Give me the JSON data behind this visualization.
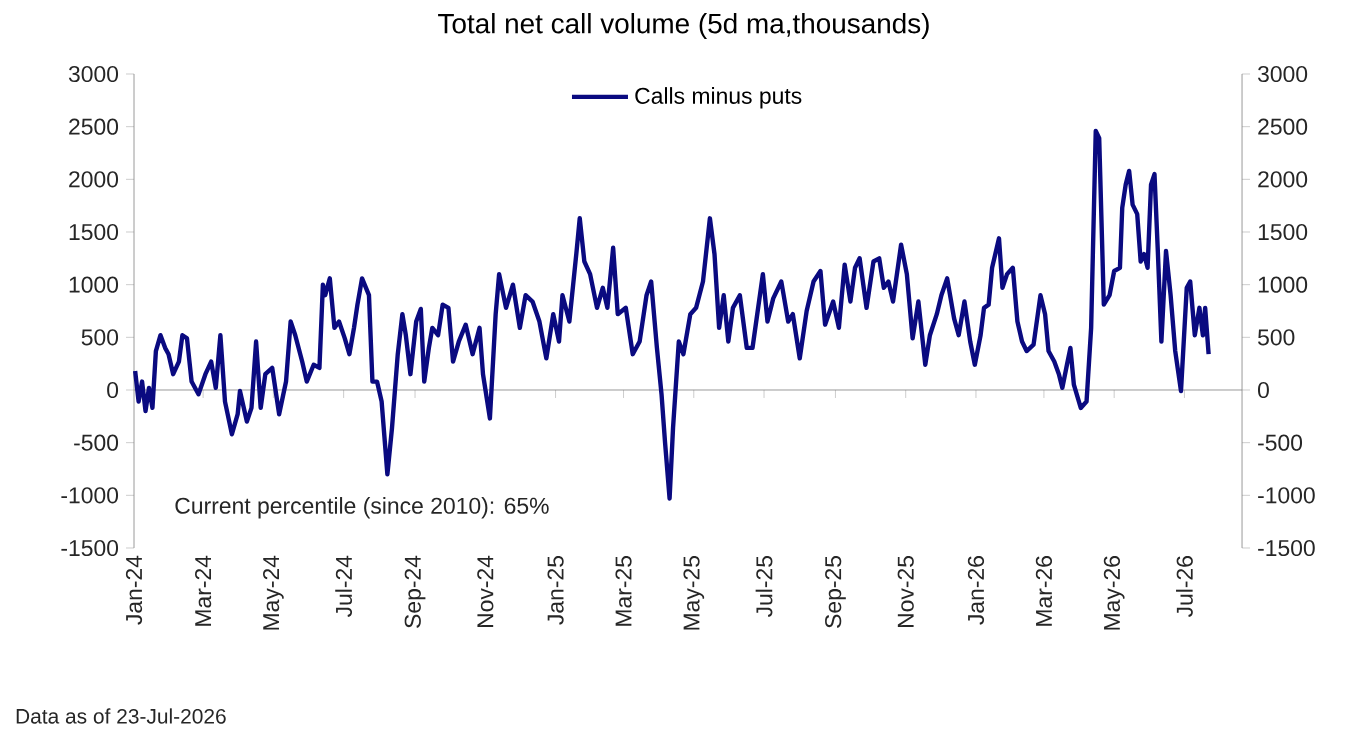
{
  "chart_data": {
    "type": "line",
    "title": "Total net call volume (5d ma,thousands)",
    "legend": "top",
    "xlim": [
      "2024-01-01",
      "2026-08-20"
    ],
    "xticks": [
      {
        "value": "2024-01-01",
        "label": "Jan-24"
      },
      {
        "value": "2024-03-01",
        "label": "Mar-24"
      },
      {
        "value": "2024-05-01",
        "label": "May-24"
      },
      {
        "value": "2024-07-01",
        "label": "Jul-24"
      },
      {
        "value": "2024-09-01",
        "label": "Sep-24"
      },
      {
        "value": "2024-11-01",
        "label": "Nov-24"
      },
      {
        "value": "2025-01-01",
        "label": "Jan-25"
      },
      {
        "value": "2025-03-01",
        "label": "Mar-25"
      },
      {
        "value": "2025-05-01",
        "label": "May-25"
      },
      {
        "value": "2025-07-01",
        "label": "Jul-25"
      },
      {
        "value": "2025-09-01",
        "label": "Sep-25"
      },
      {
        "value": "2025-11-01",
        "label": "Nov-25"
      },
      {
        "value": "2026-01-01",
        "label": "Jan-26"
      },
      {
        "value": "2026-03-01",
        "label": "Mar-26"
      },
      {
        "value": "2026-05-01",
        "label": "May-26"
      },
      {
        "value": "2026-07-01",
        "label": "Jul-26"
      }
    ],
    "ylim": [
      -1500,
      3000
    ],
    "yticks": [
      -1500,
      -1000,
      -500,
      0,
      500,
      1000,
      1500,
      2000,
      2500,
      3000
    ],
    "y2lim": [
      -1500,
      3000
    ],
    "y2ticks": [
      -1500,
      -1000,
      -500,
      0,
      500,
      1000,
      1500,
      2000,
      2500,
      3000
    ],
    "annotations": [
      "Current percentile (since 2010): 65%",
      "Data as of 23-Jul-2026"
    ],
    "series": [
      {
        "name": "Calls minus puts",
        "color": "#0a0a80",
        "x": [
          "2024-01-02",
          "2024-01-05",
          "2024-01-08",
          "2024-01-11",
          "2024-01-14",
          "2024-01-17",
          "2024-01-20",
          "2024-01-24",
          "2024-01-28",
          "2024-01-31",
          "2024-02-04",
          "2024-02-09",
          "2024-02-12",
          "2024-02-16",
          "2024-02-20",
          "2024-02-26",
          "2024-03-03",
          "2024-03-08",
          "2024-03-12",
          "2024-03-16",
          "2024-03-20",
          "2024-03-26",
          "2024-03-31",
          "2024-04-02",
          "2024-04-08",
          "2024-04-12",
          "2024-04-16",
          "2024-04-20",
          "2024-04-24",
          "2024-04-30",
          "2024-05-06",
          "2024-05-12",
          "2024-05-16",
          "2024-05-20",
          "2024-05-26",
          "2024-05-30",
          "2024-06-05",
          "2024-06-10",
          "2024-06-13",
          "2024-06-15",
          "2024-06-19",
          "2024-06-23",
          "2024-06-27",
          "2024-07-02",
          "2024-07-06",
          "2024-07-10",
          "2024-07-13",
          "2024-07-17",
          "2024-07-23",
          "2024-07-26",
          "2024-07-30",
          "2024-08-03",
          "2024-08-08",
          "2024-08-12",
          "2024-08-17",
          "2024-08-21",
          "2024-08-24",
          "2024-08-28",
          "2024-09-02",
          "2024-09-06",
          "2024-09-09",
          "2024-09-13",
          "2024-09-16",
          "2024-09-21",
          "2024-09-25",
          "2024-09-30",
          "2024-10-04",
          "2024-10-09",
          "2024-10-15",
          "2024-10-21",
          "2024-10-27",
          "2024-10-30",
          "2024-11-05",
          "2024-11-10",
          "2024-11-13",
          "2024-11-19",
          "2024-11-25",
          "2024-12-01",
          "2024-12-06",
          "2024-12-12",
          "2024-12-18",
          "2024-12-24",
          "2024-12-30",
          "2025-01-04",
          "2025-01-07",
          "2025-01-13",
          "2025-01-19",
          "2025-01-22",
          "2025-01-26",
          "2025-01-31",
          "2025-02-06",
          "2025-02-11",
          "2025-02-15",
          "2025-02-20",
          "2025-02-24",
          "2025-03-03",
          "2025-03-09",
          "2025-03-15",
          "2025-03-21",
          "2025-03-25",
          "2025-03-30",
          "2025-04-03",
          "2025-04-06",
          "2025-04-10",
          "2025-04-13",
          "2025-04-18",
          "2025-04-22",
          "2025-04-28",
          "2025-05-03",
          "2025-05-09",
          "2025-05-15",
          "2025-05-19",
          "2025-05-23",
          "2025-05-27",
          "2025-05-31",
          "2025-06-04",
          "2025-06-10",
          "2025-06-16",
          "2025-06-21",
          "2025-06-30",
          "2025-07-04",
          "2025-07-09",
          "2025-07-16",
          "2025-07-22",
          "2025-07-26",
          "2025-08-01",
          "2025-08-07",
          "2025-08-13",
          "2025-08-19",
          "2025-08-23",
          "2025-08-30",
          "2025-09-04",
          "2025-09-09",
          "2025-09-14",
          "2025-09-18",
          "2025-09-22",
          "2025-09-28",
          "2025-10-04",
          "2025-10-09",
          "2025-10-13",
          "2025-10-17",
          "2025-10-21",
          "2025-10-28",
          "2025-11-02",
          "2025-11-07",
          "2025-11-12",
          "2025-11-18",
          "2025-11-22",
          "2025-11-28",
          "2025-12-02",
          "2025-12-07",
          "2025-12-13",
          "2025-12-17",
          "2025-12-22",
          "2025-12-27",
          "2025-12-31",
          "2026-01-05",
          "2026-01-08",
          "2026-01-12",
          "2026-01-15",
          "2026-01-21",
          "2026-01-24",
          "2026-01-28",
          "2026-02-02",
          "2026-02-06",
          "2026-02-10",
          "2026-02-14",
          "2026-02-20",
          "2026-02-26",
          "2026-03-02",
          "2026-03-05",
          "2026-03-10",
          "2026-03-14",
          "2026-03-17",
          "2026-03-21",
          "2026-03-24",
          "2026-03-27",
          "2026-04-02",
          "2026-04-07",
          "2026-04-11",
          "2026-04-15",
          "2026-04-18",
          "2026-04-22",
          "2026-04-27",
          "2026-05-01",
          "2026-05-06",
          "2026-05-08",
          "2026-05-11",
          "2026-05-14",
          "2026-05-17",
          "2026-05-21",
          "2026-05-24",
          "2026-05-27",
          "2026-05-30",
          "2026-06-02",
          "2026-06-05",
          "2026-06-08",
          "2026-06-11",
          "2026-06-15",
          "2026-06-19",
          "2026-06-23",
          "2026-06-28",
          "2026-07-03",
          "2026-07-06",
          "2026-07-10",
          "2026-07-14",
          "2026-07-17",
          "2026-07-19",
          "2026-07-22"
        ],
        "values": [
          180,
          -110,
          80,
          -200,
          20,
          -170,
          370,
          520,
          400,
          340,
          150,
          270,
          520,
          490,
          80,
          -40,
          150,
          270,
          20,
          520,
          -110,
          -420,
          -230,
          -10,
          -300,
          -170,
          460,
          -170,
          150,
          210,
          -230,
          80,
          650,
          520,
          270,
          80,
          240,
          210,
          1000,
          900,
          1060,
          590,
          650,
          490,
          340,
          590,
          810,
          1060,
          900,
          80,
          80,
          -110,
          -800,
          -360,
          340,
          720,
          520,
          150,
          650,
          770,
          80,
          400,
          590,
          520,
          810,
          780,
          270,
          460,
          620,
          340,
          590,
          150,
          -270,
          720,
          1100,
          780,
          1000,
          590,
          900,
          840,
          650,
          300,
          720,
          460,
          900,
          650,
          1290,
          1630,
          1220,
          1100,
          780,
          970,
          780,
          1350,
          720,
          780,
          340,
          460,
          900,
          1030,
          400,
          -40,
          -490,
          -1030,
          -360,
          460,
          340,
          720,
          780,
          1030,
          1630,
          1290,
          590,
          900,
          460,
          780,
          900,
          400,
          400,
          1100,
          650,
          870,
          1030,
          650,
          720,
          300,
          750,
          1030,
          1130,
          620,
          840,
          590,
          1190,
          840,
          1160,
          1250,
          780,
          1220,
          1250,
          970,
          1030,
          840,
          1380,
          1100,
          490,
          840,
          240,
          520,
          720,
          900,
          1060,
          680,
          520,
          840,
          460,
          240,
          520,
          780,
          810,
          1160,
          1440,
          970,
          1100,
          1160,
          650,
          460,
          370,
          430,
          900,
          720,
          370,
          270,
          150,
          20,
          240,
          400,
          50,
          -170,
          -110,
          590,
          2460,
          2390,
          810,
          900,
          1130,
          1160,
          1730,
          1950,
          2080,
          1760,
          1670,
          1220,
          1290,
          1160,
          1950,
          2050,
          1290,
          460,
          1320,
          900,
          370,
          -10,
          970,
          1030,
          520,
          780,
          520,
          780,
          340
        ]
      }
    ]
  }
}
